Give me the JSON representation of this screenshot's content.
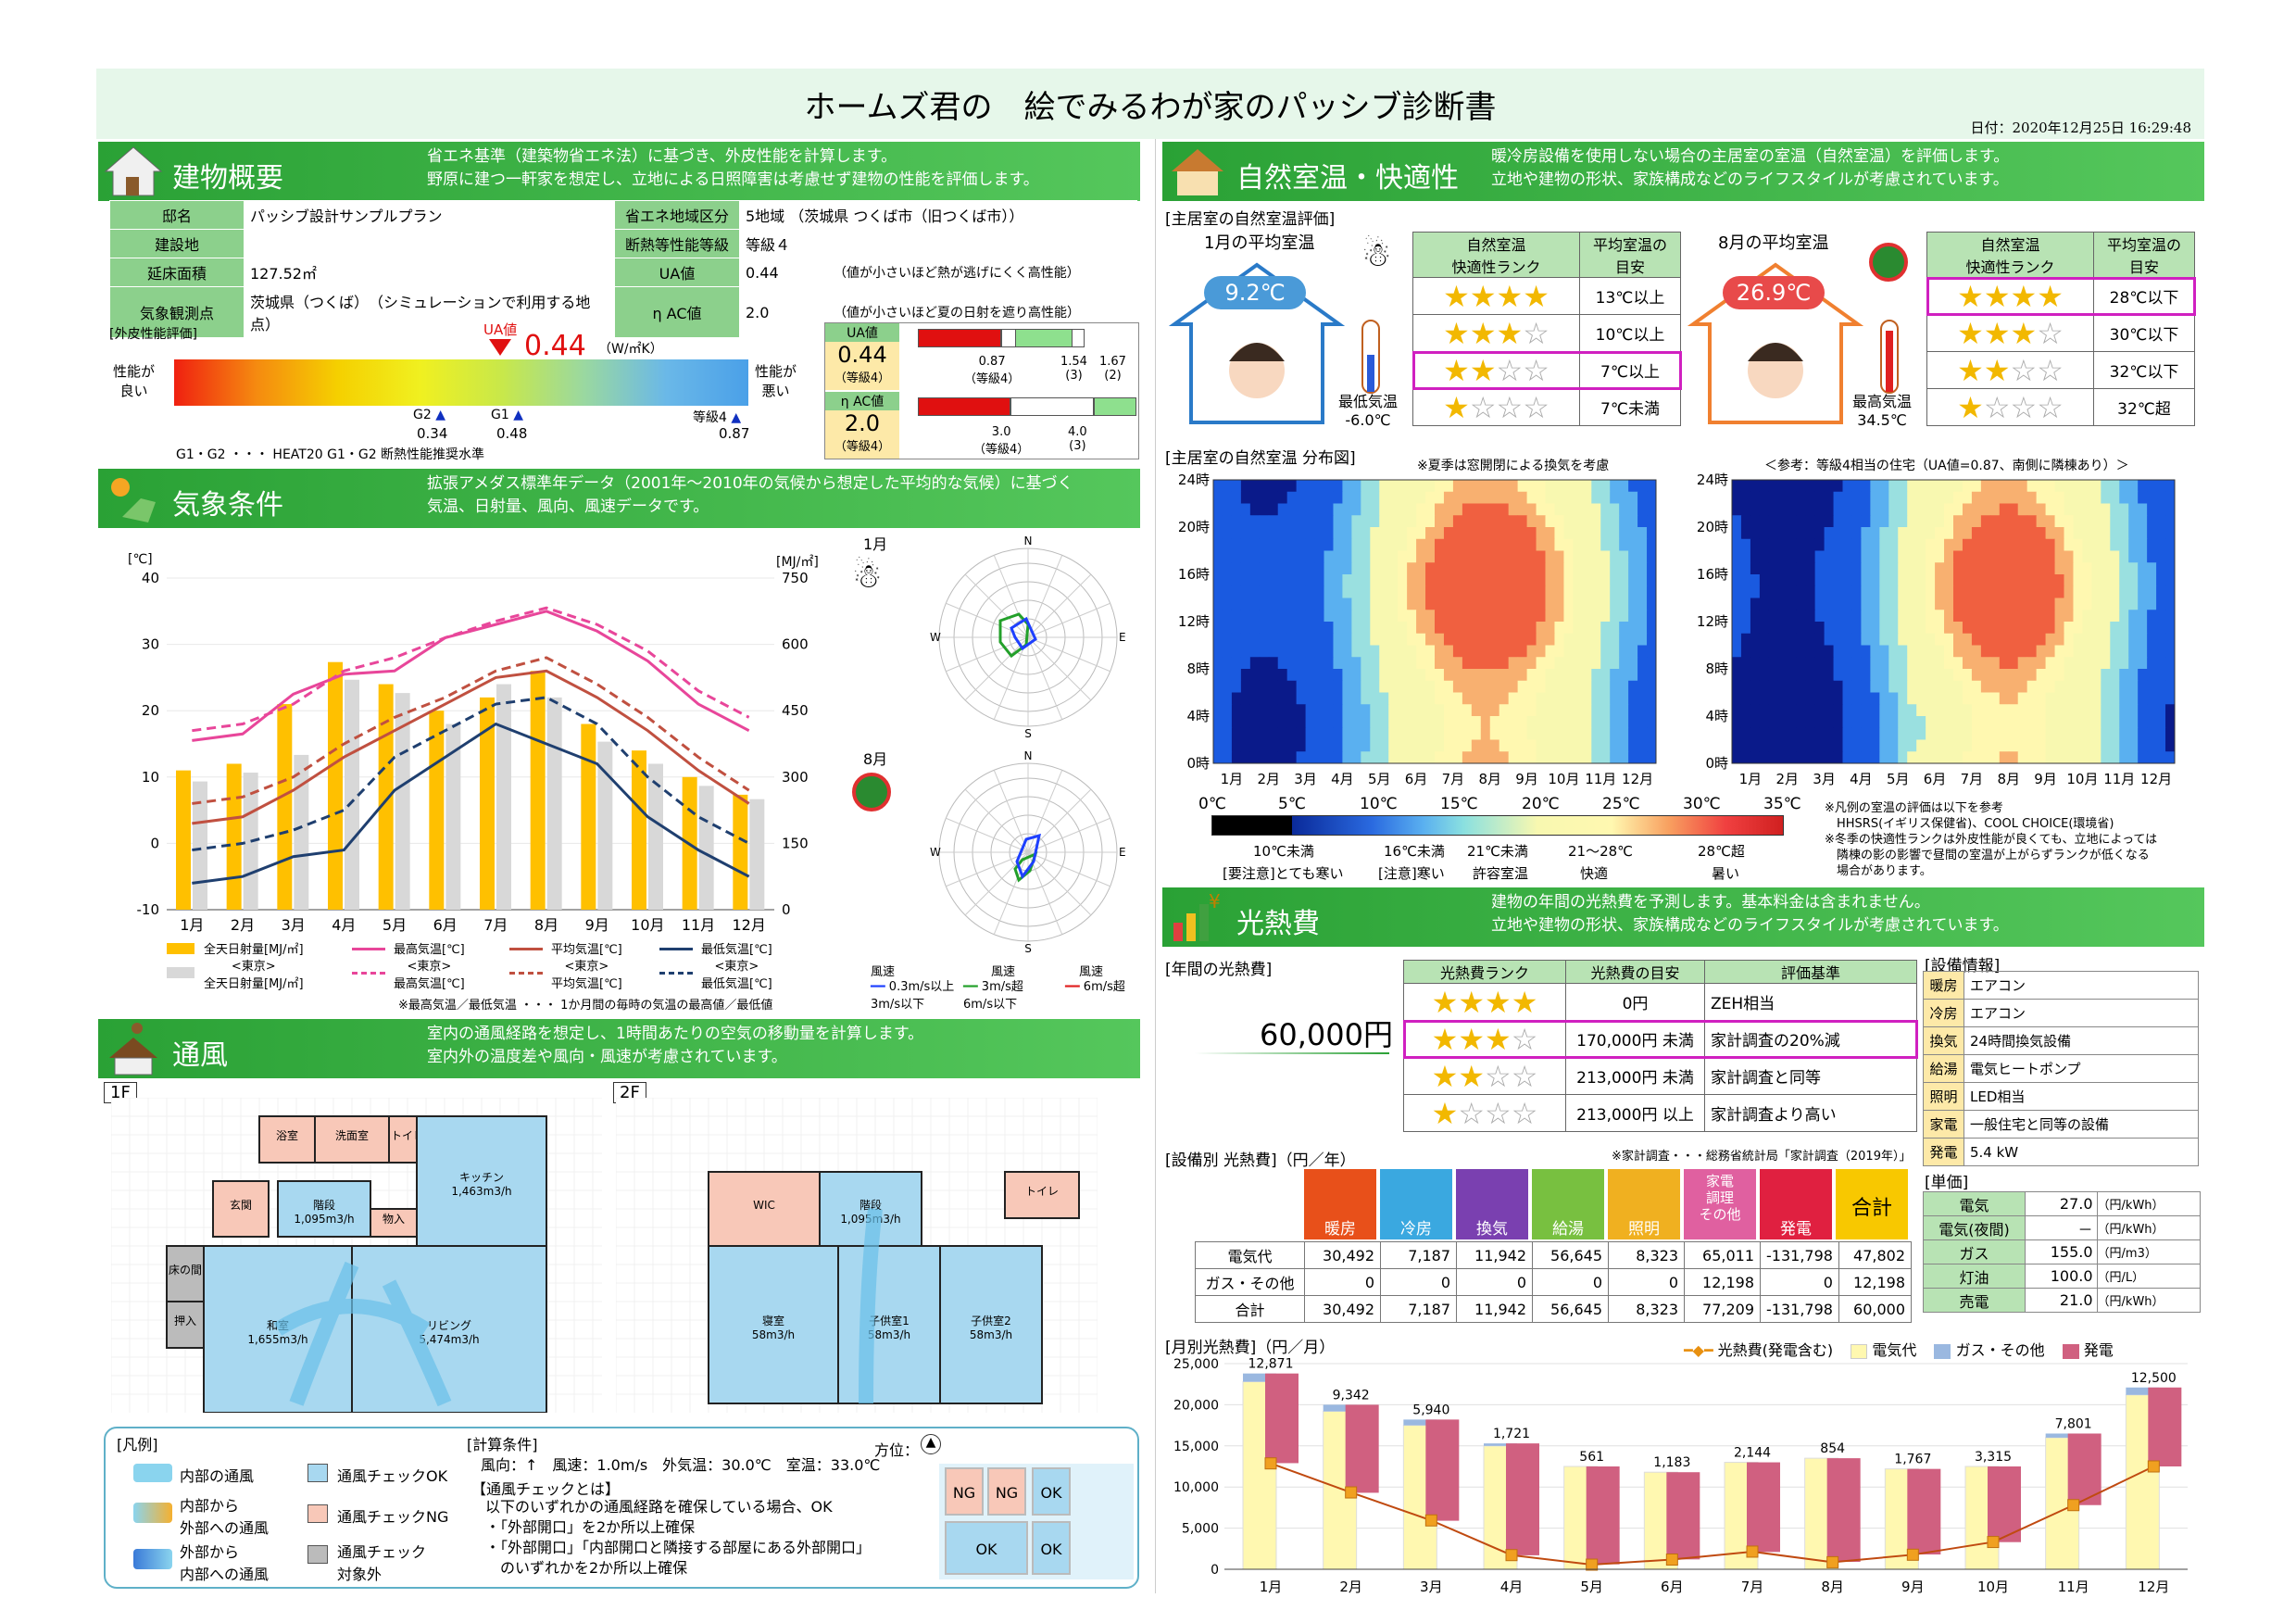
{
  "title": "ホームズ君の　絵でみるわが家のパッシブ診断書",
  "date": "日付：2020年12月25日 16:29:48",
  "building": {
    "heading": "建物概要",
    "desc1": "省エネ基準（建築物省エネ法）に基づき、外皮性能を計算します。",
    "desc2": "野原に建つ一軒家を想定し、立地による日照障害は考慮せず建物の性能を評価します。",
    "rows": [
      [
        "邸名",
        "パッシブ設計サンプルプラン",
        "省エネ地域区分",
        "5地域 （茨城県 つくば市（旧つくば市））",
        ""
      ],
      [
        "建設地",
        "",
        "断熱等性能等級",
        "等級４",
        ""
      ],
      [
        "延床面積",
        "127.52㎡",
        "UA値",
        "0.44",
        "（値が小さいほど熱が逃げにくく高性能）"
      ],
      [
        "気象観測点",
        "茨城県（つくば）　（シミュレーションで利用する地点）",
        "η AC値",
        "2.0",
        "（値が小さいほど夏の日射を遮り高性能）"
      ]
    ],
    "skin_label": "[外皮性能評価]",
    "good": "性能が\n良い",
    "bad": "性能が\n悪い",
    "ua_tag": "UA値",
    "ua_val": "0.44",
    "ua_unit": "（W/㎡K）",
    "g2": "G2",
    "g2v": "0.34",
    "g1": "G1",
    "g1v": "0.48",
    "g4": "等級4",
    "g4v": "0.87",
    "note": "G1・G2 ・・・ HEAT20 G1・G2 断熱性能推奨水準",
    "ua_box": {
      "label": "UA値",
      "val": "0.44",
      "sub": "（等級4）",
      "a": "0.87",
      "as": "（等級4）",
      "b": "1.54",
      "bs": "(3)",
      "c": "1.67",
      "cs": "(2)"
    },
    "eta_box": {
      "label": "η AC値",
      "val": "2.0",
      "sub": "（等級4）",
      "a": "3.0",
      "as": "（等級4）",
      "b": "4.0",
      "bs": "(3)"
    }
  },
  "weather": {
    "heading": "気象条件",
    "desc1": "拡張アメダス標準年データ（2001年～2010年の気候から想定した平均的な気候）に基づく",
    "desc2": "気温、日射量、風向、風速データです。",
    "yunit": "[℃]",
    "y2unit": "[MJ/㎡]",
    "jan": "1月",
    "aug": "8月",
    "legend": [
      "全天日射量[MJ/㎡]",
      "最高気温[℃]",
      "平均気温[℃]",
      "最低気温[℃]",
      "<東京>\n全天日射量[MJ/㎡]",
      "<東京>\n最高気温[℃]",
      "<東京>\n平均気温[℃]",
      "<東京>\n最低気温[℃]"
    ],
    "note": "※最高気温／最低気温 ・・・ 1か月間の毎時の気温の最高値／最低値",
    "wind_legend": [
      "風速",
      "0.3m/s以上\n3m/s以下",
      "風速",
      "3m/s超\n6m/s以下",
      "風速",
      "6m/s超"
    ]
  },
  "chart_data": [
    {
      "type": "bar",
      "title": "",
      "categories": [
        "1月",
        "2月",
        "3月",
        "4月",
        "5月",
        "6月",
        "7月",
        "8月",
        "9月",
        "10月",
        "11月",
        "12月"
      ],
      "ylim": [
        -10,
        40
      ],
      "y2lim": [
        0,
        750
      ],
      "series": [
        {
          "name": "全天日射量[MJ/㎡]",
          "values": [
            315,
            330,
            465,
            560,
            510,
            450,
            480,
            540,
            420,
            360,
            300,
            260
          ]
        },
        {
          "name": "<東京>\n全天日射量[MJ/㎡]",
          "values": [
            290,
            310,
            350,
            520,
            490,
            420,
            510,
            480,
            380,
            330,
            280,
            250
          ]
        },
        {
          "name": "最高気温[℃]",
          "values": [
            15.5,
            16.5,
            22.5,
            25.5,
            26,
            31,
            33,
            35,
            32,
            27.5,
            21,
            17
          ]
        },
        {
          "name": "<東京>\n最高気温[℃]",
          "values": [
            17,
            18,
            21,
            26,
            28,
            31,
            33.5,
            35.5,
            33,
            29,
            23,
            19
          ]
        },
        {
          "name": "平均気温[℃]",
          "values": [
            3,
            4,
            8,
            13,
            17,
            21,
            25,
            26,
            22,
            17,
            11,
            6
          ]
        },
        {
          "name": "<東京>\n平均気温[℃]",
          "values": [
            6,
            7,
            10,
            15,
            19,
            22,
            26,
            28,
            24,
            19,
            13,
            8
          ]
        },
        {
          "name": "最低気温[℃]",
          "values": [
            -6,
            -5,
            -2,
            -1,
            8,
            13,
            18,
            15,
            12,
            4,
            -1,
            -5
          ]
        },
        {
          "name": "<東京>\n最低気温[℃]",
          "values": [
            -1,
            0,
            2,
            5,
            13,
            17,
            21,
            22,
            18,
            10,
            4,
            0
          ]
        }
      ]
    },
    {
      "type": "heatmap",
      "title": "",
      "x": [
        "1月",
        "2月",
        "3月",
        "4月",
        "5月",
        "6月",
        "7月",
        "8月",
        "9月",
        "10月",
        "11月",
        "12月"
      ],
      "y": [
        "0時",
        "4時",
        "8時",
        "12時",
        "16時",
        "20時",
        "24時"
      ]
    },
    {
      "type": "heatmap",
      "title": "",
      "x": [
        "1月",
        "2月",
        "3月",
        "4月",
        "5月",
        "6月",
        "7月",
        "8月",
        "9月",
        "10月",
        "11月",
        "12月"
      ],
      "y": [
        "0時",
        "4時",
        "8時",
        "12時",
        "16時",
        "20時",
        "24時"
      ]
    },
    {
      "type": "bar",
      "title": "",
      "categories": [
        "1月",
        "2月",
        "3月",
        "4月",
        "5月",
        "6月",
        "7月",
        "8月",
        "9月",
        "10月",
        "11月",
        "12月"
      ],
      "ylim": [
        0,
        25000
      ],
      "series": [
        {
          "name": "光熱費(発電含む)",
          "values": [
            12871,
            9342,
            5940,
            1721,
            561,
            1183,
            2144,
            854,
            1767,
            3315,
            7801,
            12500
          ]
        },
        {
          "name": "電気代",
          "values": [
            22800,
            19200,
            17500,
            15000,
            12500,
            11800,
            13000,
            13500,
            12200,
            12500,
            16000,
            21200
          ]
        },
        {
          "name": "ガス・その他",
          "values": [
            1000,
            800,
            700,
            300,
            0,
            0,
            0,
            0,
            0,
            0,
            500,
            900
          ]
        },
        {
          "name": "発電",
          "values": [
            -10900,
            -10700,
            -12300,
            -13600,
            -11900,
            -10600,
            -10900,
            -12600,
            -10400,
            -9200,
            -8700,
            -9600
          ]
        }
      ]
    }
  ],
  "natural": {
    "heading": "自然室温・快適性",
    "desc1": "暖冷房設備を使用しない場合の主居室の室温（自然室温）を評価します。",
    "desc2": "立地や建物の形状、家族構成などのライフスタイルが考慮されています。",
    "sub": "[主居室の自然室温評価]",
    "jan": "1月の平均室温",
    "jan_t": "9.2℃",
    "jan_min": "最低気温\n-6.0℃",
    "aug": "8月の平均室温",
    "aug_t": "26.9℃",
    "aug_max": "最高気温\n34.5℃",
    "rank_h1": "自然室温\n快適性ランク",
    "rank_h2": "平均室温の\n目安",
    "winter": [
      "13℃以上",
      "10℃以上",
      "7℃以上",
      "7℃未満"
    ],
    "summer": [
      "28℃以下",
      "30℃以下",
      "32℃以下",
      "32℃超"
    ],
    "dist": "[主居室の自然室温 分布図]",
    "note_summer": "※夏季は窓開閉による換気を考慮",
    "ref": "＜参考：等級4相当の住宅（UA値=0.87、南側に隣棟あり）＞",
    "scale": [
      "0℃",
      "5℃",
      "10℃",
      "15℃",
      "20℃",
      "25℃",
      "30℃",
      "35℃"
    ],
    "cats": [
      "10℃未満",
      "16℃未満",
      "21℃未満",
      "21～28℃",
      "28℃超"
    ],
    "cats2": [
      "[要注意]とても寒い",
      "[注意]寒い",
      "許容室温",
      "快適",
      "暑い"
    ],
    "note2": "※凡例の室温の評価は以下を参考\n　HHSRS(イギリス保健省)、COOL CHOICE(環境省)\n※冬季の快適性ランクは外皮性能が良くても、立地によっては\n　隣棟の影の影響で昼間の室温が上がらずランクが低くなる\n　場合があります。"
  },
  "cost": {
    "heading": "光熱費",
    "desc1": "建物の年間の光熱費を予測します。基本料金は含まれません。",
    "desc2": "立地や建物の形状、家族構成などのライフスタイルが考慮されています。",
    "annual_lbl": "[年間の光熱費]",
    "annual": "60,000円",
    "rank_h": [
      "光熱費ランク",
      "光熱費の目安",
      "評価基準"
    ],
    "ranks": [
      [
        "0円",
        "ZEH相当"
      ],
      [
        "170,000円 未満",
        "家計調査の20%減"
      ],
      [
        "213,000円 未満",
        "家計調査と同等"
      ],
      [
        "213,000円 以上",
        "家計調査より高い"
      ]
    ],
    "src": "※家計調査・・・総務省統計局「家計調査（2019年）」",
    "equip_lbl": "[設備情報]",
    "equip": [
      [
        "暖房",
        "エアコン"
      ],
      [
        "冷房",
        "エアコン"
      ],
      [
        "換気",
        "24時間換気設備"
      ],
      [
        "給湯",
        "電気ヒートポンプ"
      ],
      [
        "照明",
        "LED相当"
      ],
      [
        "家電",
        "一般住宅と同等の設備"
      ],
      [
        "発電",
        "5.4 kW"
      ]
    ],
    "by_lbl": "[設備別 光熱費]（円／年）",
    "cats": [
      "暖房",
      "冷房",
      "換気",
      "給湯",
      "照明",
      "家電\n調理\nその他",
      "発電",
      "合計"
    ],
    "rows": [
      [
        "電気代",
        "30,492",
        "7,187",
        "11,942",
        "56,645",
        "8,323",
        "65,011",
        "-131,798",
        "47,802"
      ],
      [
        "ガス・その他",
        "0",
        "0",
        "0",
        "0",
        "0",
        "12,198",
        "0",
        "12,198"
      ],
      [
        "合計",
        "30,492",
        "7,187",
        "11,942",
        "56,645",
        "8,323",
        "77,209",
        "-131,798",
        "60,000"
      ]
    ],
    "unit_lbl": "[単価]",
    "units": [
      [
        "電気",
        "27.0",
        "（円/kWh）"
      ],
      [
        "電気(夜間)",
        "－",
        "（円/kWh）"
      ],
      [
        "ガス",
        "155.0",
        "（円/m3）"
      ],
      [
        "灯油",
        "100.0",
        "（円/L）"
      ],
      [
        "売電",
        "21.0",
        "（円/kWh）"
      ]
    ],
    "monthly_lbl": "[月別光熱費]（円／月）",
    "mlegend": [
      "光熱費(発電含む)",
      "電気代",
      "ガス・その他",
      "発電"
    ]
  },
  "vent": {
    "heading": "通風",
    "desc1": "室内の通風経路を想定し、1時間あたりの空気の移動量を計算します。",
    "desc2": "室内外の温度差や風向・風速が考慮されています。",
    "f1": "1F",
    "f2": "2F",
    "rooms1": [
      [
        "浴室"
      ],
      [
        "洗面室"
      ],
      [
        "トイレ"
      ],
      [
        "玄関"
      ],
      [
        "階段\n1,095m3/h"
      ],
      [
        "物入"
      ],
      [
        "キッチン\n1,463m3/h"
      ],
      [
        "床の間"
      ],
      [
        "押入"
      ],
      [
        "和室\n1,655m3/h"
      ],
      [
        "リビング\n5,474m3/h"
      ]
    ],
    "rooms2": [
      "WIC",
      "階段\n1,095m3/h",
      "トイレ",
      "寝室\n58m3/h",
      "子供室1\n58m3/h",
      "子供室2\n58m3/h"
    ],
    "legend_lbl": "[凡例]",
    "l1": "内部の通風",
    "l2": "内部から\n外部への通風",
    "l3": "外部から\n内部への通風",
    "l4": "通風チェックOK",
    "l5": "通風チェックNG",
    "l6": "通風チェック\n対象外",
    "calc_lbl": "[計算条件]",
    "calc": "風向：↑　風速：1.0m/s　外気温：30.0℃　室温：33.0℃",
    "dir": "方位：",
    "check_t": "【通風チェックとは】",
    "check": "以下のいずれかの通風経路を確保している場合、OK\n・「外部開口」を2か所以上確保\n・「外部開口」「内部開口と隣接する部屋にある外部開口」\n　のいずれかを2か所以上確保",
    "ng": "NG",
    "ok": "OK"
  }
}
